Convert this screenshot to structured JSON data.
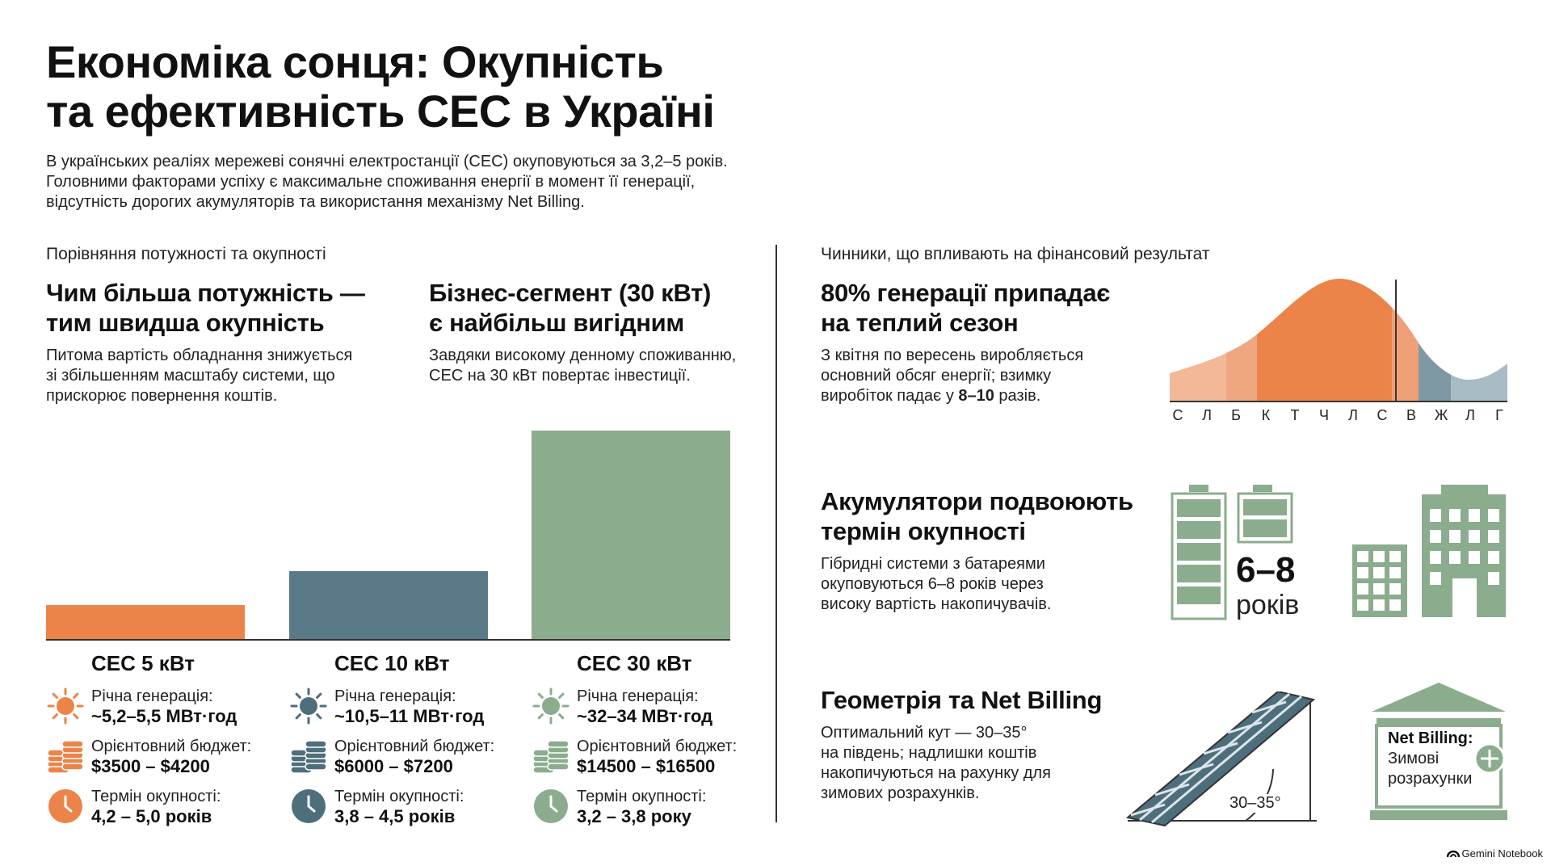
{
  "header": {
    "title_line1": "Економіка сонця: Окупність",
    "title_line2": "та ефективність СЕС в Україні",
    "intro_line1": "В українських реаліях мережеві сонячні електростанції (СЕС) окуповуються за 3,2–5 років.",
    "intro_line2": "Головними факторами успіху є максимальне споживання енергії в момент її генерації,",
    "intro_line3": "відсутність дорогих акумуляторів та використання механізму Net Billing."
  },
  "left": {
    "section_label": "Порівняння потужності та окупності",
    "block1": {
      "heading_line1": "Чим більша потужність —",
      "heading_line2": "тим швидша окупність",
      "text_line1": "Питома вартість обладнання знижується",
      "text_line2": "зі збільшенням масштабу системи, що",
      "text_line3": "прискорює повернення коштів."
    },
    "block2": {
      "heading_line1": "Бізнес-сегмент (30 кВт)",
      "heading_line2": "є найбільш вигідним",
      "text_line1": "Завдяки високому денному споживанню,",
      "text_line2": "СЕС на 30 кВт повертає інвестиції."
    }
  },
  "chart_data": {
    "type": "bar",
    "categories": [
      "СЕС 5 кВт",
      "СЕС 10 кВт",
      "СЕС 30 кВт"
    ],
    "values": [
      5.35,
      10.75,
      33
    ],
    "colors": [
      "#ec8449",
      "#5a7a88",
      "#8cac8e"
    ]
  },
  "columns": [
    {
      "title": "СЕС 5 кВт",
      "color": "#ec8449",
      "gen_label": "Річна генерація:",
      "gen_value": "~5,2–5,5 МВт·год",
      "budget_label": "Орієнтовний бюджет:",
      "budget_value": "$3500 – $4200",
      "payback_label": "Термін окупності:",
      "payback_value": "4,2 – 5,0 років"
    },
    {
      "title": "СЕС 10 кВт",
      "color": "#4f6e7c",
      "gen_label": "Річна генерація:",
      "gen_value": "~10,5–11 МВт·год",
      "budget_label": "Орієнтовний бюджет:",
      "budget_value": "$6000 – $7200",
      "payback_label": "Термін окупності:",
      "payback_value": "3,8 – 4,5 років"
    },
    {
      "title": "СЕС 30 кВт",
      "color": "#8cac8e",
      "gen_label": "Річна генерація:",
      "gen_value": "~32–34 МВт·год",
      "budget_label": "Орієнтовний бюджет:",
      "budget_value": "$14500 – $16500",
      "payback_label": "Термін окупності:",
      "payback_value": "3,2 – 3,8 року"
    }
  ],
  "right": {
    "section_label": "Чинники, що впливають на фінансовий результат",
    "season": {
      "heading_line1": "80% генерації припадає",
      "heading_line2": "на теплий сезон",
      "text_line1": "З квітня по вересень виробляється",
      "text_line2": "основний обсяг енергії; взимку",
      "text_line3_pre": "виробіток падає у ",
      "text_line3_bold": "8–10",
      "text_line3_post": " разів.",
      "months": [
        "С",
        "Л",
        "Б",
        "К",
        "Т",
        "Ч",
        "Л",
        "С",
        "В",
        "Ж",
        "Л",
        "Г"
      ]
    },
    "battery": {
      "heading_line1": "Акумулятори подвоюють",
      "heading_line2": "термін окупності",
      "text_line1": "Гібридні системи з батареями",
      "text_line2": "окуповуються 6–8 років через",
      "text_line3": "високу вартість накопичувачів.",
      "years_value": "6–8",
      "years_word": "років"
    },
    "billing": {
      "heading": "Геометрія та Net Billing",
      "text_line1": "Оптимальний кут — 30–35°",
      "text_line2": "на південь; надлишки коштів",
      "text_line3": "накопичуються на рахунку для",
      "text_line4": "зимових розрахунків.",
      "angle_label": "30–35°",
      "nb_title": "Net Billing:",
      "nb_line1": "Зимові",
      "nb_line2": "розрахунки"
    }
  },
  "footer": {
    "brand": "Gemini Notebook"
  }
}
